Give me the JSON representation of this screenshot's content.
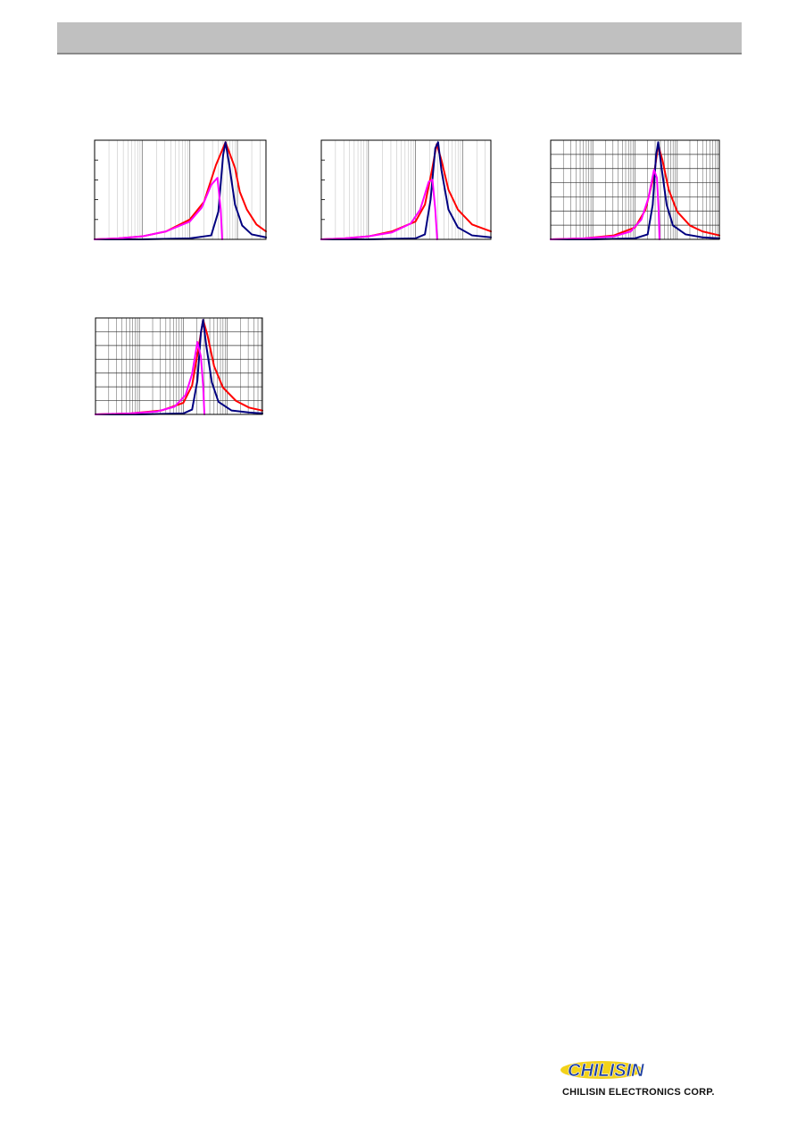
{
  "header": {
    "title": ""
  },
  "charts": {
    "colors": {
      "series_a": "#ff0000",
      "series_b": "#000080",
      "series_c": "#ff00ff",
      "grid": "#999999",
      "frame": "#000000"
    },
    "chart_data": [
      {
        "type": "line",
        "title": "",
        "xlabel": "",
        "ylabel": "",
        "x_scale": "log",
        "x_decades": 3.6,
        "grid": "vertical-log",
        "y_ticks": 5,
        "series": [
          {
            "color": "#ff0000",
            "x": [
              0.0,
              0.5,
              1.0,
              1.5,
              2.0,
              2.3,
              2.55,
              2.75,
              2.95,
              3.05,
              3.2,
              3.4,
              3.6
            ],
            "y": [
              0.0,
              0.01,
              0.03,
              0.08,
              0.2,
              0.38,
              0.75,
              0.98,
              0.72,
              0.48,
              0.3,
              0.15,
              0.08
            ]
          },
          {
            "color": "#000080",
            "x": [
              0.0,
              1.0,
              2.0,
              2.45,
              2.6,
              2.7,
              2.75,
              2.82,
              2.95,
              3.1,
              3.3,
              3.6
            ],
            "y": [
              0.0,
              0.0,
              0.01,
              0.04,
              0.28,
              0.85,
              0.98,
              0.78,
              0.35,
              0.14,
              0.05,
              0.02
            ]
          },
          {
            "color": "#ff00ff",
            "x": [
              0.0,
              0.5,
              1.0,
              1.5,
              2.0,
              2.25,
              2.45,
              2.58,
              2.65,
              2.68
            ],
            "y": [
              0.0,
              0.01,
              0.03,
              0.08,
              0.18,
              0.32,
              0.55,
              0.62,
              0.3,
              0.0
            ]
          }
        ]
      },
      {
        "type": "line",
        "title": "",
        "xlabel": "",
        "ylabel": "",
        "x_scale": "log",
        "x_decades": 3.6,
        "grid": "vertical-log",
        "y_ticks": 5,
        "series": [
          {
            "color": "#ff0000",
            "x": [
              0.0,
              0.5,
              1.0,
              1.5,
              2.0,
              2.2,
              2.35,
              2.45,
              2.55,
              2.7,
              2.9,
              3.2,
              3.6
            ],
            "y": [
              0.0,
              0.01,
              0.03,
              0.08,
              0.18,
              0.35,
              0.7,
              0.96,
              0.8,
              0.5,
              0.3,
              0.15,
              0.08
            ]
          },
          {
            "color": "#000080",
            "x": [
              0.0,
              1.0,
              2.0,
              2.2,
              2.32,
              2.42,
              2.48,
              2.55,
              2.7,
              2.9,
              3.2,
              3.6
            ],
            "y": [
              0.0,
              0.0,
              0.01,
              0.05,
              0.4,
              0.92,
              0.98,
              0.7,
              0.3,
              0.12,
              0.04,
              0.02
            ]
          },
          {
            "color": "#ff00ff",
            "x": [
              0.0,
              0.5,
              1.0,
              1.5,
              1.9,
              2.1,
              2.28,
              2.36,
              2.42,
              2.46
            ],
            "y": [
              0.0,
              0.01,
              0.03,
              0.07,
              0.16,
              0.3,
              0.58,
              0.6,
              0.3,
              0.0
            ]
          }
        ]
      },
      {
        "type": "line",
        "title": "",
        "xlabel": "",
        "ylabel": "",
        "x_scale": "log",
        "x_decades": 4.0,
        "grid": "full",
        "y_ticks": 7,
        "series": [
          {
            "color": "#ff0000",
            "x": [
              0.0,
              0.8,
              1.5,
              2.0,
              2.25,
              2.45,
              2.55,
              2.65,
              2.8,
              3.0,
              3.3,
              3.6,
              4.0
            ],
            "y": [
              0.0,
              0.01,
              0.04,
              0.12,
              0.3,
              0.65,
              0.95,
              0.8,
              0.5,
              0.28,
              0.14,
              0.08,
              0.04
            ]
          },
          {
            "color": "#000080",
            "x": [
              0.0,
              1.0,
              2.0,
              2.3,
              2.42,
              2.5,
              2.55,
              2.62,
              2.75,
              2.9,
              3.2,
              3.6,
              4.0
            ],
            "y": [
              0.0,
              0.0,
              0.01,
              0.05,
              0.35,
              0.85,
              0.98,
              0.75,
              0.35,
              0.14,
              0.05,
              0.02,
              0.01
            ]
          },
          {
            "color": "#ff00ff",
            "x": [
              0.0,
              0.8,
              1.5,
              1.9,
              2.15,
              2.32,
              2.45,
              2.52,
              2.56,
              2.58
            ],
            "y": [
              0.0,
              0.01,
              0.03,
              0.08,
              0.2,
              0.42,
              0.7,
              0.62,
              0.3,
              0.0
            ]
          }
        ]
      },
      {
        "type": "line",
        "title": "",
        "xlabel": "",
        "ylabel": "",
        "x_scale": "log",
        "x_decades": 3.8,
        "grid": "full",
        "y_ticks": 7,
        "series": [
          {
            "color": "#ff0000",
            "x": [
              0.0,
              0.8,
              1.5,
              2.0,
              2.2,
              2.35,
              2.45,
              2.55,
              2.7,
              2.9,
              3.2,
              3.5,
              3.8
            ],
            "y": [
              0.0,
              0.01,
              0.04,
              0.12,
              0.3,
              0.7,
              0.98,
              0.82,
              0.5,
              0.28,
              0.14,
              0.07,
              0.04
            ]
          },
          {
            "color": "#000080",
            "x": [
              0.0,
              1.0,
              2.0,
              2.2,
              2.32,
              2.4,
              2.45,
              2.52,
              2.65,
              2.8,
              3.1,
              3.5,
              3.8
            ],
            "y": [
              0.0,
              0.0,
              0.01,
              0.05,
              0.35,
              0.85,
              0.98,
              0.72,
              0.33,
              0.13,
              0.04,
              0.02,
              0.01
            ]
          },
          {
            "color": "#ff00ff",
            "x": [
              0.0,
              0.8,
              1.4,
              1.8,
              2.05,
              2.2,
              2.32,
              2.4,
              2.45,
              2.48
            ],
            "y": [
              0.0,
              0.01,
              0.03,
              0.08,
              0.2,
              0.42,
              0.75,
              0.6,
              0.3,
              0.0
            ]
          }
        ]
      }
    ]
  },
  "footer": {
    "logo_wordmark": "CHILISIN",
    "company_name": "CHILISIN ELECTRONICS CORP."
  }
}
